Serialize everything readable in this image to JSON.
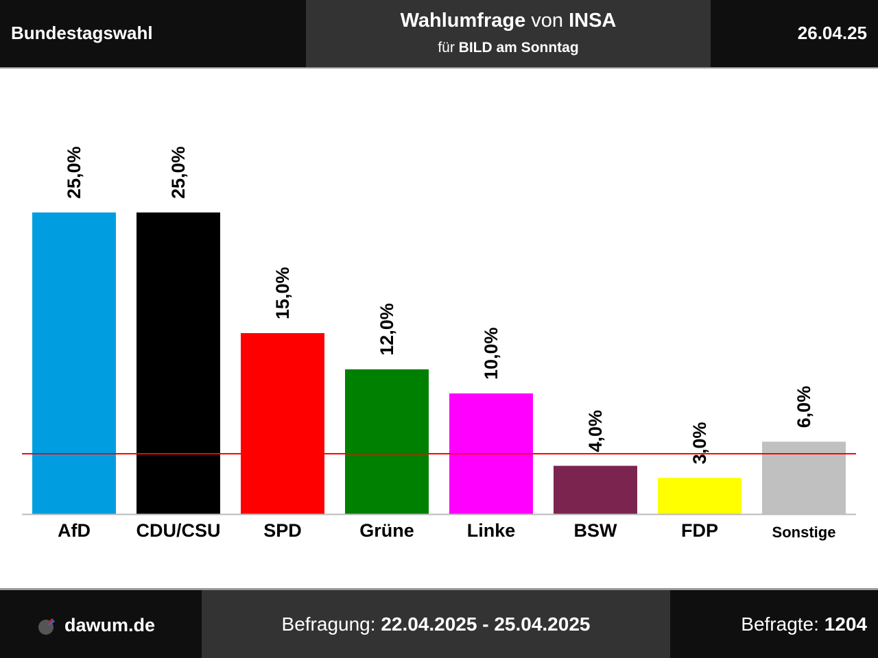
{
  "header": {
    "region": "Bundestagswahl",
    "title_poll": "Wahlumfrage",
    "title_von": "von",
    "title_institute": "INSA",
    "subtitle_fuer": "für",
    "subtitle_client": "BILD am Sonntag",
    "date": "26.04.25"
  },
  "chart_data": {
    "type": "bar",
    "categories": [
      "AfD",
      "CDU/CSU",
      "SPD",
      "Grüne",
      "Linke",
      "BSW",
      "FDP",
      "Sonstige"
    ],
    "values": [
      25.0,
      25.0,
      15.0,
      12.0,
      10.0,
      4.0,
      3.0,
      6.0
    ],
    "value_labels": [
      "25,0%",
      "25,0%",
      "15,0%",
      "12,0%",
      "10,0%",
      "4,0%",
      "3,0%",
      "6,0%"
    ],
    "colors": [
      "#009ee0",
      "#000000",
      "#ff0000",
      "#008000",
      "#ff00ff",
      "#7b2450",
      "#ffff00",
      "#c0c0c0"
    ],
    "threshold": 5,
    "threshold_color": "#ff0000",
    "ylim": [
      0,
      30
    ],
    "grid": false,
    "legend": "none"
  },
  "footer": {
    "brand": "dawum.de",
    "brand_icon": "dawum-logo-icon",
    "survey_label": "Befragung:",
    "survey_period": "22.04.2025 - 25.04.2025",
    "respondents_label": "Befragte:",
    "respondents_value": "1204"
  }
}
